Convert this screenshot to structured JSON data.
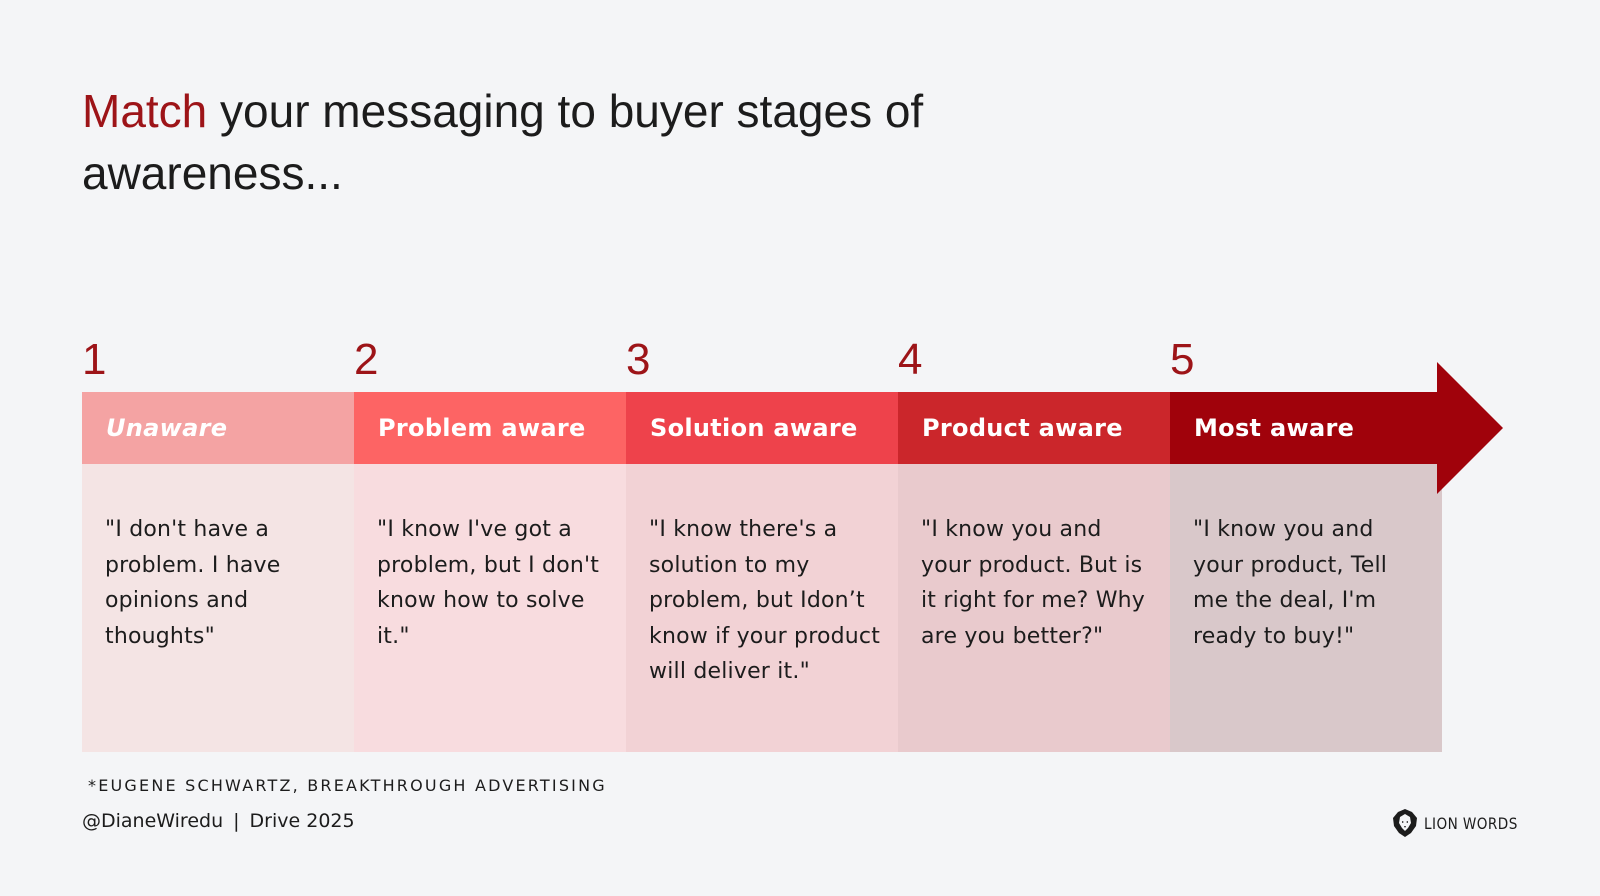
{
  "title": {
    "accent": "Match",
    "rest": "your messaging to buyer stages of awareness..."
  },
  "stages": [
    {
      "number": "1",
      "label": "Unaware",
      "quote": "\"I don't have a problem. I have opinions and thoughts\"",
      "bar_color": "#f4a3a3",
      "body_color": "#f4e4e4",
      "italic": true
    },
    {
      "number": "2",
      "label": "Problem aware",
      "quote": "\"I know I've got a problem, but I don't know how to solve it.\"",
      "bar_color": "#fd6464",
      "body_color": "#f8dcdf",
      "italic": false
    },
    {
      "number": "3",
      "label": "Solution aware",
      "quote": "\"I know there's a solution to my problem, but Idon’t know if your product will deliver it.\"",
      "bar_color": "#ee424b",
      "body_color": "#f2d2d5",
      "italic": false
    },
    {
      "number": "4",
      "label": "Product aware",
      "quote": "\"I know you and your product. But is it right for me? Why are you better?\"",
      "bar_color": "#cb262b",
      "body_color": "#e9cacd",
      "italic": false
    },
    {
      "number": "5",
      "label": "Most aware",
      "quote": "\"I know you and your product, Tell me the deal, I'm ready to buy!\"",
      "bar_color": "#a0020b",
      "body_color": "#d9c8ca",
      "italic": false
    }
  ],
  "arrow_color": "#a0020b",
  "source": "*EUGENE SCHWARTZ, BREAKTHROUGH ADVERTISING",
  "footer": {
    "handle": "@DianeWiredu",
    "separator": "|",
    "event": "Drive 2025"
  },
  "brand": {
    "name": "LION WORDS",
    "icon": "lion-head-icon"
  },
  "colors": {
    "accent": "#9d1418",
    "background": "#f4f5f7"
  }
}
